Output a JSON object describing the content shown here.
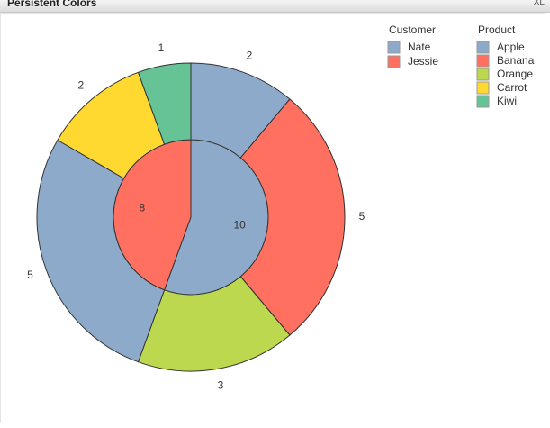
{
  "title": "Persistent Colors",
  "toolbar_label": "XL",
  "chart_data": {
    "type": "sunburst",
    "category_legend_title": "Customer",
    "series_legend_title": "Product",
    "categories": [
      "Nate",
      "Jessie"
    ],
    "category_colors": [
      "#8eaacb",
      "#ff7060"
    ],
    "totals": [
      10,
      8
    ],
    "series": [
      {
        "name": "Apple",
        "color": "#8eaacb",
        "values": [
          2,
          5
        ]
      },
      {
        "name": "Banana",
        "color": "#ff7060",
        "values": [
          5,
          null
        ]
      },
      {
        "name": "Orange",
        "color": "#bcd84e",
        "values": [
          3,
          null
        ]
      },
      {
        "name": "Carrot",
        "color": "#ffd92f",
        "values": [
          null,
          2
        ]
      },
      {
        "name": "Kiwi",
        "color": "#66c395",
        "values": [
          null,
          1
        ]
      }
    ]
  }
}
